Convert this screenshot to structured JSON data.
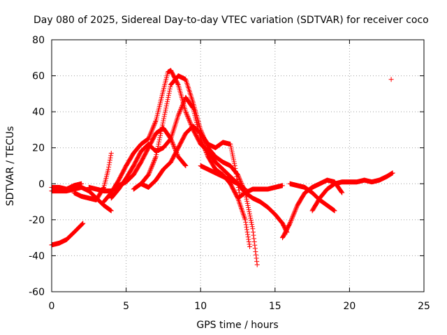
{
  "chart_data": {
    "type": "scatter",
    "title": "Day 080 of 2025, Sidereal Day-to-day VTEC variation (SDTVAR) for receiver coco",
    "xlabel": "GPS time / hours",
    "ylabel": "SDTVAR / TECUs",
    "xlim": [
      0,
      25
    ],
    "ylim": [
      -60,
      80
    ],
    "x_ticks": [
      "0",
      "5",
      "10",
      "15",
      "20",
      "25"
    ],
    "y_ticks": [
      "-60",
      "-40",
      "-20",
      "0",
      "20",
      "40",
      "60",
      "80"
    ],
    "grid": true,
    "legend": "none",
    "marker": "+",
    "color": "#ff0000",
    "series": [
      {
        "name": "arc-1",
        "x": [
          0.0,
          0.5,
          1.0,
          1.5,
          2.1
        ],
        "y": [
          -34,
          -33,
          -31,
          -27,
          -22
        ]
      },
      {
        "name": "arc-2",
        "x": [
          0.0,
          0.5,
          1.0,
          1.5,
          2.0,
          2.5,
          3.0,
          3.5,
          4.0
        ],
        "y": [
          -4,
          -4,
          -4,
          -3,
          -2,
          -4,
          -8,
          -12,
          -15
        ]
      },
      {
        "name": "arc-3",
        "x": [
          0.0,
          0.5,
          1.0,
          1.5,
          2.0
        ],
        "y": [
          -2,
          -2,
          -3,
          -1,
          0
        ]
      },
      {
        "name": "arc-4",
        "x": [
          1.5,
          2.0,
          2.5,
          3.0,
          3.5,
          3.8,
          4.0
        ],
        "y": [
          -5,
          -7,
          -8,
          -9,
          -2,
          8,
          17
        ]
      },
      {
        "name": "arc-5",
        "x": [
          2.5,
          3.0,
          3.5,
          4.0,
          4.5,
          5.0,
          5.5,
          6.0,
          6.5,
          7.0,
          7.5,
          8.0,
          8.5,
          9.0
        ],
        "y": [
          -2,
          -3,
          -4,
          -4,
          -1,
          1,
          5,
          12,
          20,
          28,
          31,
          25,
          15,
          10
        ]
      },
      {
        "name": "arc-6",
        "x": [
          3.5,
          4.0,
          4.5,
          5.0,
          5.5,
          6.0,
          6.5,
          7.0,
          7.5,
          7.8,
          8.0,
          8.5,
          9.0,
          9.5,
          10.0,
          10.5,
          11.0,
          11.5,
          12.0,
          12.5,
          13.0
        ],
        "y": [
          -10,
          -5,
          2,
          10,
          17,
          22,
          25,
          35,
          52,
          62,
          63,
          55,
          40,
          30,
          22,
          18,
          12,
          8,
          4,
          0,
          -3
        ]
      },
      {
        "name": "arc-7",
        "x": [
          4.0,
          4.5,
          5.0,
          5.5,
          6.0,
          6.5,
          7.0,
          7.5,
          8.0,
          8.5,
          9.0,
          9.5,
          10.0,
          10.5,
          11.0,
          11.5,
          12.0,
          12.5,
          13.0,
          13.3
        ],
        "y": [
          -8,
          -3,
          3,
          10,
          18,
          22,
          18,
          20,
          25,
          38,
          48,
          42,
          25,
          15,
          8,
          5,
          0,
          -8,
          -20,
          -35
        ]
      },
      {
        "name": "arc-8",
        "x": [
          5.5,
          6.0,
          6.5,
          7.0,
          7.5,
          8.0,
          8.5,
          9.0,
          9.5,
          10.0,
          10.5,
          11.0,
          11.5,
          12.0,
          12.5,
          13.0,
          13.5,
          13.8
        ],
        "y": [
          -3,
          0,
          5,
          15,
          35,
          55,
          60,
          58,
          45,
          30,
          20,
          15,
          12,
          10,
          5,
          -5,
          -25,
          -45
        ]
      },
      {
        "name": "arc-9",
        "x": [
          6.0,
          6.5,
          7.0,
          7.5,
          8.0,
          8.5,
          9.0,
          9.5,
          10.0,
          10.5,
          11.0,
          11.5,
          12.0,
          12.3,
          12.6
        ],
        "y": [
          0,
          -2,
          2,
          8,
          12,
          20,
          28,
          32,
          28,
          22,
          20,
          23,
          22,
          10,
          -5
        ]
      },
      {
        "name": "arc-10",
        "x": [
          10.0,
          10.5,
          11.0,
          11.5,
          12.0,
          12.5,
          13.0,
          13.5,
          14.0,
          14.5,
          15.0,
          15.5,
          15.8
        ],
        "y": [
          10,
          8,
          6,
          4,
          2,
          0,
          -5,
          -8,
          -10,
          -13,
          -17,
          -22,
          -27
        ]
      },
      {
        "name": "arc-11",
        "x": [
          12.5,
          13.0,
          13.5,
          14.0,
          14.5,
          15.0,
          15.5
        ],
        "y": [
          -8,
          -5,
          -3,
          -3,
          -3,
          -2,
          -1
        ]
      },
      {
        "name": "arc-12",
        "x": [
          15.5,
          15.7,
          16.0,
          16.5,
          17.0,
          17.5,
          18.0,
          18.5,
          19.0,
          19.5
        ],
        "y": [
          -30,
          -27,
          -22,
          -12,
          -5,
          -2,
          0,
          2,
          1,
          -5
        ]
      },
      {
        "name": "arc-13",
        "x": [
          16.0,
          16.5,
          17.0,
          17.5,
          18.0,
          18.5,
          19.0
        ],
        "y": [
          0,
          -1,
          -2,
          -5,
          -9,
          -12,
          -15
        ]
      },
      {
        "name": "arc-14",
        "x": [
          17.5,
          18.0,
          18.5,
          19.0,
          19.5,
          20.0,
          20.5,
          21.0,
          21.5,
          22.0,
          22.5,
          22.9
        ],
        "y": [
          -15,
          -8,
          -3,
          0,
          1,
          1,
          1,
          2,
          1,
          2,
          4,
          6
        ]
      },
      {
        "name": "outlier",
        "x": [
          22.8
        ],
        "y": [
          58
        ]
      }
    ]
  }
}
